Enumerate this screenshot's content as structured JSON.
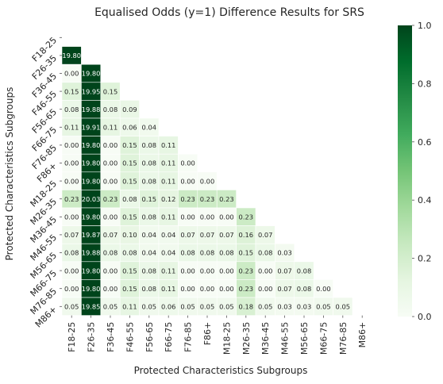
{
  "chart_data": {
    "type": "heatmap",
    "title": "Equalised Odds (y=1) Difference Results for SRS",
    "xlabel": "Protected Characteristics Subgroups",
    "ylabel": "Protected Characteristics Subgroups",
    "rows": [
      "F18-25",
      "F26-35",
      "F36-45",
      "F46-55",
      "F56-65",
      "F66-75",
      "F76-85",
      "F86+",
      "M18-25",
      "M26-35",
      "M36-45",
      "M46-55",
      "M56-65",
      "M66-75",
      "M76-85",
      "M86+"
    ],
    "cols": [
      "F18-25",
      "F26-35",
      "F36-45",
      "F46-55",
      "F56-65",
      "F66-75",
      "F76-85",
      "F86+",
      "M18-25",
      "M26-35",
      "M36-45",
      "M46-55",
      "M56-65",
      "M66-75",
      "M76-85",
      "M86+"
    ],
    "mask": "upper-triangle-including-diagonal",
    "values": [
      [],
      [
        19.8
      ],
      [
        0.0,
        19.8
      ],
      [
        0.15,
        19.95,
        0.15
      ],
      [
        0.08,
        19.88,
        0.08,
        0.09
      ],
      [
        0.11,
        19.91,
        0.11,
        0.06,
        0.04
      ],
      [
        0.0,
        19.8,
        0.0,
        0.15,
        0.08,
        0.11
      ],
      [
        0.0,
        19.8,
        0.0,
        0.15,
        0.08,
        0.11,
        0.0
      ],
      [
        0.0,
        19.8,
        0.0,
        0.15,
        0.08,
        0.11,
        0.0,
        0.0
      ],
      [
        0.23,
        20.03,
        0.23,
        0.08,
        0.15,
        0.12,
        0.23,
        0.23,
        0.23
      ],
      [
        0.0,
        19.8,
        0.0,
        0.15,
        0.08,
        0.11,
        0.0,
        0.0,
        0.0,
        0.23
      ],
      [
        0.07,
        19.87,
        0.07,
        0.1,
        0.04,
        0.04,
        0.07,
        0.07,
        0.07,
        0.16,
        0.07
      ],
      [
        0.08,
        19.88,
        0.08,
        0.08,
        0.04,
        0.04,
        0.08,
        0.08,
        0.08,
        0.15,
        0.08,
        0.03
      ],
      [
        0.0,
        19.8,
        0.0,
        0.15,
        0.08,
        0.11,
        0.0,
        0.0,
        0.0,
        0.23,
        0.0,
        0.07,
        0.08
      ],
      [
        0.0,
        19.8,
        0.0,
        0.15,
        0.08,
        0.11,
        0.0,
        0.0,
        0.0,
        0.23,
        0.0,
        0.07,
        0.08,
        0.0
      ],
      [
        0.05,
        19.85,
        0.05,
        0.11,
        0.05,
        0.06,
        0.05,
        0.05,
        0.05,
        0.18,
        0.05,
        0.03,
        0.03,
        0.05,
        0.05
      ]
    ],
    "colorbar": {
      "vmin": 0.0,
      "vmax": 1.0,
      "ticks": [
        "0.0",
        "0.2",
        "0.4",
        "0.6",
        "0.8",
        "1.0"
      ],
      "colormap": "Greens",
      "color_low": "#f7fcf5",
      "color_high": "#00441b"
    },
    "value_format": "2 decimals"
  }
}
